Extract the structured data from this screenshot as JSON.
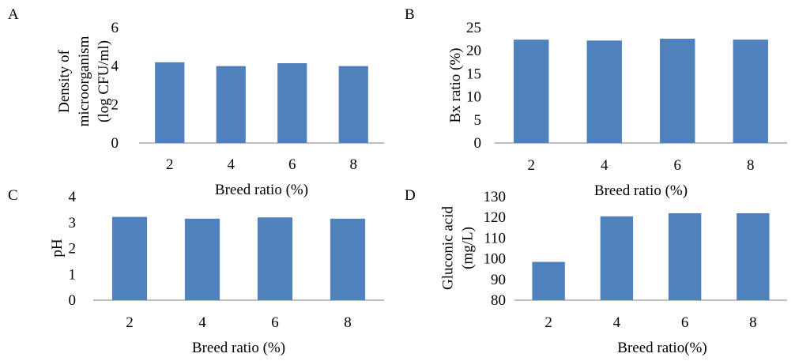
{
  "bar_color": "#4F81BD",
  "axis_color": "#7F7F7F",
  "chart_data": [
    {
      "panel": "A",
      "type": "bar",
      "categories": [
        "2",
        "4",
        "6",
        "8"
      ],
      "values": [
        4.2,
        4.0,
        4.15,
        4.0
      ],
      "xlabel": "Breed ratio (%)",
      "ylabel_lines": [
        "Density of",
        "microorganism",
        "(log CFU/ml)"
      ],
      "ylim": [
        0,
        6
      ],
      "yticks": [
        "0",
        "2",
        "4",
        "6"
      ],
      "grid": false,
      "legend": "none"
    },
    {
      "panel": "B",
      "type": "bar",
      "categories": [
        "2",
        "4",
        "6",
        "8"
      ],
      "values": [
        22.4,
        22.2,
        22.6,
        22.4
      ],
      "xlabel": "Breed ratio (%)",
      "ylabel_lines": [
        "Bx ratio (%)"
      ],
      "ylim": [
        0,
        25
      ],
      "yticks": [
        "0",
        "5",
        "10",
        "15",
        "20",
        "25"
      ],
      "grid": false,
      "legend": "none"
    },
    {
      "panel": "C",
      "type": "bar",
      "categories": [
        "2",
        "4",
        "6",
        "8"
      ],
      "values": [
        3.22,
        3.15,
        3.2,
        3.15
      ],
      "xlabel": "Breed ratio (%)",
      "ylabel_lines": [
        "pH"
      ],
      "ylim": [
        0,
        4
      ],
      "yticks": [
        "0",
        "1",
        "2",
        "3",
        "4"
      ],
      "grid": false,
      "legend": "none"
    },
    {
      "panel": "D",
      "type": "bar",
      "categories": [
        "2",
        "4",
        "6",
        "8"
      ],
      "values": [
        98.5,
        120.5,
        122,
        122
      ],
      "xlabel": "Breed ratio(%)",
      "ylabel_lines": [
        "Gluconic acid",
        "(mg/L)"
      ],
      "ylim": [
        80,
        130
      ],
      "yticks": [
        "80",
        "90",
        "100",
        "110",
        "120",
        "130"
      ],
      "grid": false,
      "legend": "none"
    }
  ]
}
